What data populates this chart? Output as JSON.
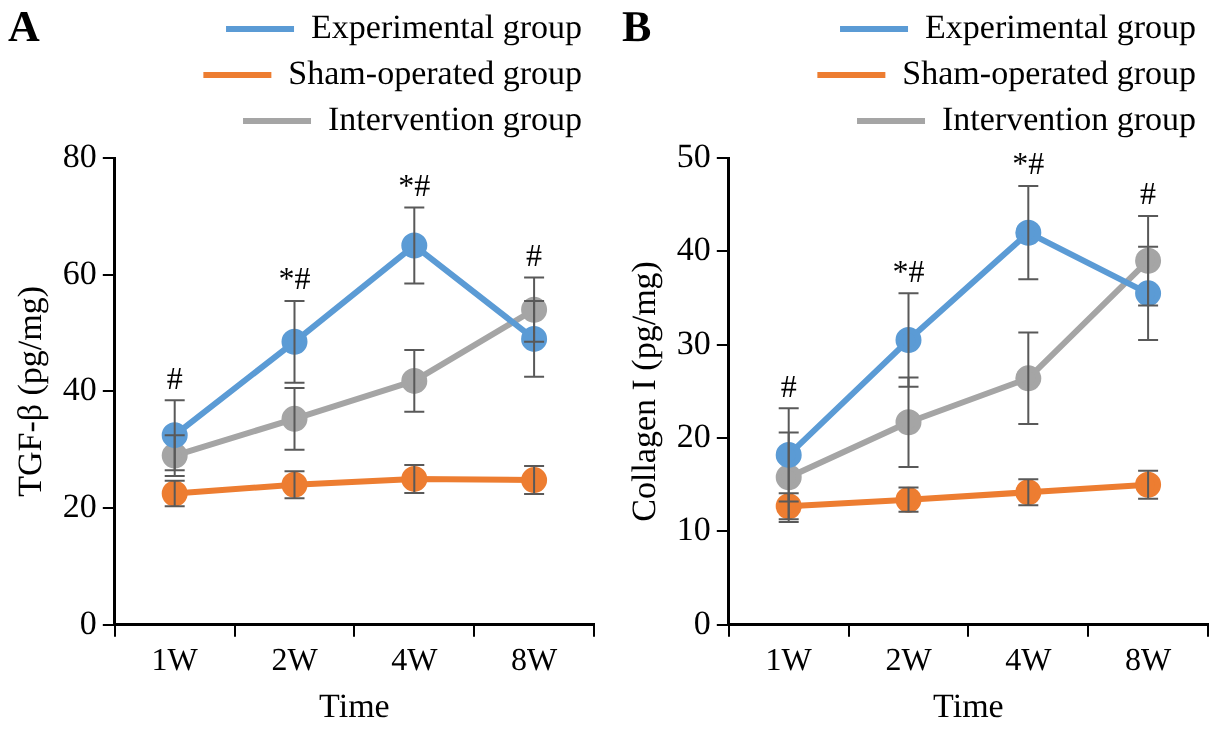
{
  "chart_data": [
    {
      "type": "line",
      "title": "A",
      "xlabel": "Time",
      "ylabel": "TGF-β (pg/mg)",
      "categories": [
        "1W",
        "2W",
        "4W",
        "8W"
      ],
      "ylim": [
        0,
        80
      ],
      "yticks": [
        0,
        20,
        40,
        60,
        80
      ],
      "grid": false,
      "legend": "top",
      "marker": "circle",
      "line_style": "solid",
      "series": [
        {
          "name": "Experimental group",
          "color": "#5b9bd5",
          "values": [
            32.5,
            48.5,
            65,
            49
          ],
          "errors": [
            6,
            7,
            6.5,
            6.5
          ]
        },
        {
          "name": "Sham-operated group",
          "color": "#ed7d31",
          "values": [
            22.5,
            24,
            25,
            24.8
          ],
          "errors": [
            2.2,
            2.3,
            2.4,
            2.4
          ]
        },
        {
          "name": "Intervention group",
          "color": "#a5a5a5",
          "values": [
            29,
            35.3,
            41.8,
            54
          ],
          "errors": [
            3.5,
            5.3,
            5.3,
            5.5
          ]
        }
      ],
      "annotations": [
        "#",
        "*#",
        "*#",
        "#"
      ]
    },
    {
      "type": "line",
      "title": "B",
      "xlabel": "Time",
      "ylabel": "Collagen I (pg/mg)",
      "categories": [
        "1W",
        "2W",
        "4W",
        "8W"
      ],
      "ylim": [
        0,
        50
      ],
      "yticks": [
        0,
        10,
        20,
        30,
        40,
        50
      ],
      "grid": false,
      "legend": "top",
      "marker": "circle",
      "line_style": "solid",
      "series": [
        {
          "name": "Experimental group",
          "color": "#5b9bd5",
          "values": [
            18.2,
            30.5,
            42,
            35.5
          ],
          "errors": [
            5,
            5,
            5,
            5
          ]
        },
        {
          "name": "Sham-operated group",
          "color": "#ed7d31",
          "values": [
            12.7,
            13.4,
            14.2,
            15
          ],
          "errors": [
            1.4,
            1.3,
            1.4,
            1.5
          ]
        },
        {
          "name": "Intervention group",
          "color": "#a5a5a5",
          "values": [
            15.8,
            21.7,
            26.4,
            39
          ],
          "errors": [
            4.8,
            4.8,
            4.9,
            4.8
          ]
        }
      ],
      "annotations": [
        "#",
        "*#",
        "*#",
        "#"
      ]
    }
  ]
}
